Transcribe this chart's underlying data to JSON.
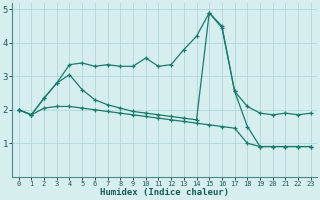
{
  "xlabel": "Humidex (Indice chaleur)",
  "xlim": [
    -0.5,
    23.5
  ],
  "ylim": [
    0,
    5.2
  ],
  "xticks": [
    0,
    1,
    2,
    3,
    4,
    5,
    6,
    7,
    8,
    9,
    10,
    11,
    12,
    13,
    14,
    15,
    16,
    17,
    18,
    19,
    20,
    21,
    22,
    23
  ],
  "yticks": [
    1,
    2,
    3,
    4,
    5
  ],
  "bg_color": "#d6eeee",
  "grid_color": "#b0d8d8",
  "line_color": "#1a7a6e",
  "line1_x": [
    0,
    1,
    2,
    3,
    4,
    5,
    6,
    7,
    8,
    9,
    10,
    11,
    12,
    13,
    14,
    15,
    16,
    17,
    18,
    19,
    20,
    21,
    22,
    23
  ],
  "line1_y": [
    2.0,
    1.85,
    2.35,
    2.8,
    3.35,
    3.4,
    3.3,
    3.35,
    3.3,
    3.3,
    3.55,
    3.3,
    3.35,
    3.8,
    4.2,
    4.9,
    4.5,
    2.55,
    2.1,
    1.9,
    1.85,
    1.9,
    1.85,
    1.9
  ],
  "line2_x": [
    0,
    1,
    2,
    3,
    4,
    5,
    6,
    7,
    8,
    9,
    10,
    11,
    12,
    13,
    14,
    15,
    16,
    17,
    18,
    19,
    20,
    21,
    22,
    23
  ],
  "line2_y": [
    2.0,
    1.85,
    2.35,
    2.8,
    3.05,
    2.6,
    2.3,
    2.15,
    2.05,
    1.95,
    1.9,
    1.85,
    1.8,
    1.75,
    1.7,
    4.9,
    4.45,
    2.55,
    1.5,
    0.9,
    0.9,
    0.9,
    0.9,
    0.9
  ],
  "line3_x": [
    0,
    1,
    2,
    3,
    4,
    5,
    6,
    7,
    8,
    9,
    10,
    11,
    12,
    13,
    14,
    15,
    16,
    17,
    18,
    19,
    20,
    21,
    22,
    23
  ],
  "line3_y": [
    2.0,
    1.85,
    2.05,
    2.1,
    2.1,
    2.05,
    2.0,
    1.95,
    1.9,
    1.85,
    1.8,
    1.75,
    1.7,
    1.65,
    1.6,
    1.55,
    1.5,
    1.45,
    1.0,
    0.9,
    0.9,
    0.9,
    0.9,
    0.9
  ]
}
